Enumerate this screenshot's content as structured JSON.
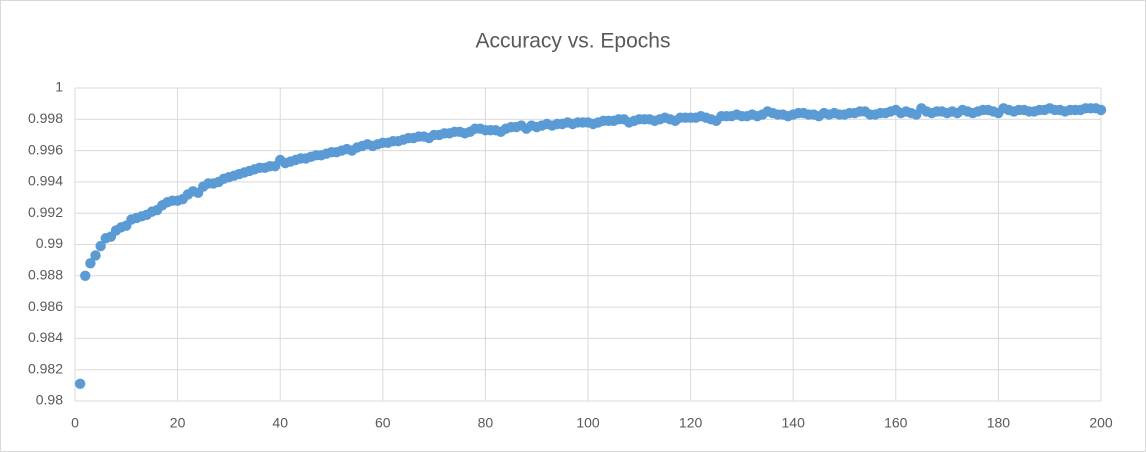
{
  "chart_data": {
    "type": "scatter",
    "title": "Accuracy vs. Epochs",
    "color": "#5b9bd5",
    "grid": true,
    "xlim": [
      0,
      200
    ],
    "xticks": [
      0,
      20,
      40,
      60,
      80,
      100,
      120,
      140,
      160,
      180,
      200
    ],
    "ylim": [
      0.98,
      1
    ],
    "yticks": [
      0.98,
      0.982,
      0.984,
      0.986,
      0.988,
      0.99,
      0.992,
      0.994,
      0.996,
      0.998,
      1
    ],
    "x": [
      1,
      2,
      3,
      4,
      5,
      6,
      7,
      8,
      9,
      10,
      11,
      12,
      13,
      14,
      15,
      16,
      17,
      18,
      19,
      20,
      21,
      22,
      23,
      24,
      25,
      26,
      27,
      28,
      29,
      30,
      31,
      32,
      33,
      34,
      35,
      36,
      37,
      38,
      39,
      40,
      41,
      42,
      43,
      44,
      45,
      46,
      47,
      48,
      49,
      50,
      51,
      52,
      53,
      54,
      55,
      56,
      57,
      58,
      59,
      60,
      61,
      62,
      63,
      64,
      65,
      66,
      67,
      68,
      69,
      70,
      71,
      72,
      73,
      74,
      75,
      76,
      77,
      78,
      79,
      80,
      81,
      82,
      83,
      84,
      85,
      86,
      87,
      88,
      89,
      90,
      91,
      92,
      93,
      94,
      95,
      96,
      97,
      98,
      99,
      100,
      101,
      102,
      103,
      104,
      105,
      106,
      107,
      108,
      109,
      110,
      111,
      112,
      113,
      114,
      115,
      116,
      117,
      118,
      119,
      120,
      121,
      122,
      123,
      124,
      125,
      126,
      127,
      128,
      129,
      130,
      131,
      132,
      133,
      134,
      135,
      136,
      137,
      138,
      139,
      140,
      141,
      142,
      143,
      144,
      145,
      146,
      147,
      148,
      149,
      150,
      151,
      152,
      153,
      154,
      155,
      156,
      157,
      158,
      159,
      160,
      161,
      162,
      163,
      164,
      165,
      166,
      167,
      168,
      169,
      170,
      171,
      172,
      173,
      174,
      175,
      176,
      177,
      178,
      179,
      180,
      181,
      182,
      183,
      184,
      185,
      186,
      187,
      188,
      189,
      190,
      191,
      192,
      193,
      194,
      195,
      196,
      197,
      198,
      199,
      200
    ],
    "values": [
      0.9811,
      0.988,
      0.9888,
      0.9893,
      0.9899,
      0.9904,
      0.9905,
      0.9909,
      0.9911,
      0.9912,
      0.9916,
      0.9917,
      0.9918,
      0.9919,
      0.9921,
      0.9922,
      0.9925,
      0.9927,
      0.9928,
      0.9928,
      0.9929,
      0.9932,
      0.9934,
      0.9933,
      0.9937,
      0.9939,
      0.9939,
      0.994,
      0.9942,
      0.9943,
      0.9944,
      0.9945,
      0.9946,
      0.9947,
      0.9948,
      0.9949,
      0.9949,
      0.995,
      0.995,
      0.9954,
      0.9952,
      0.9953,
      0.9954,
      0.9955,
      0.9955,
      0.9956,
      0.9957,
      0.9957,
      0.9958,
      0.9959,
      0.9959,
      0.996,
      0.9961,
      0.996,
      0.9962,
      0.9963,
      0.9964,
      0.9963,
      0.9964,
      0.9965,
      0.9965,
      0.9966,
      0.9966,
      0.9967,
      0.9968,
      0.9968,
      0.9969,
      0.9969,
      0.9968,
      0.997,
      0.997,
      0.9971,
      0.9971,
      0.9972,
      0.9972,
      0.9971,
      0.9972,
      0.9974,
      0.9974,
      0.9973,
      0.9973,
      0.9973,
      0.9972,
      0.9974,
      0.9975,
      0.9975,
      0.9976,
      0.9974,
      0.9976,
      0.9975,
      0.9976,
      0.9977,
      0.9976,
      0.9977,
      0.9977,
      0.9978,
      0.9977,
      0.9978,
      0.9978,
      0.9978,
      0.9977,
      0.9978,
      0.9979,
      0.9979,
      0.9979,
      0.998,
      0.998,
      0.9978,
      0.9979,
      0.998,
      0.998,
      0.998,
      0.9979,
      0.998,
      0.9981,
      0.998,
      0.9979,
      0.9981,
      0.9981,
      0.9981,
      0.9981,
      0.9982,
      0.9981,
      0.998,
      0.9979,
      0.9982,
      0.9982,
      0.9982,
      0.9983,
      0.9982,
      0.9982,
      0.9983,
      0.9982,
      0.9983,
      0.9985,
      0.9984,
      0.9983,
      0.9983,
      0.9982,
      0.9983,
      0.9984,
      0.9984,
      0.9983,
      0.9983,
      0.9982,
      0.9984,
      0.9983,
      0.9984,
      0.9983,
      0.9983,
      0.9984,
      0.9984,
      0.9985,
      0.9985,
      0.9983,
      0.9983,
      0.9984,
      0.9984,
      0.9985,
      0.9986,
      0.9984,
      0.9985,
      0.9984,
      0.9983,
      0.9987,
      0.9985,
      0.9984,
      0.9985,
      0.9985,
      0.9984,
      0.9985,
      0.9984,
      0.9986,
      0.9985,
      0.9984,
      0.9985,
      0.9986,
      0.9986,
      0.9985,
      0.9984,
      0.9987,
      0.9986,
      0.9985,
      0.9986,
      0.9986,
      0.9985,
      0.9985,
      0.9986,
      0.9986,
      0.9987,
      0.9986,
      0.9986,
      0.9985,
      0.9986,
      0.9986,
      0.9986,
      0.9987,
      0.9987,
      0.9987,
      0.9986
    ]
  }
}
